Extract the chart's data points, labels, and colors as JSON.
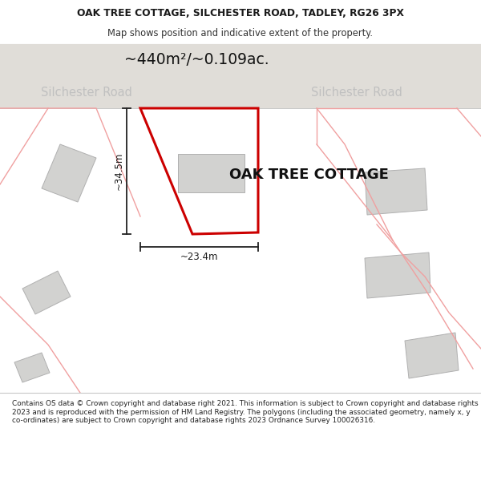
{
  "title_line1": "OAK TREE COTTAGE, SILCHESTER ROAD, TADLEY, RG26 3PX",
  "title_line2": "Map shows position and indicative extent of the property.",
  "area_label": "~440m²/~0.109ac.",
  "road_label": "Silchester Road",
  "property_label": "OAK TREE COTTAGE",
  "dim_height": "~34.5m",
  "dim_width": "~23.4m",
  "footer_text": "Contains OS data © Crown copyright and database right 2021. This information is subject to Crown copyright and database rights 2023 and is reproduced with the permission of HM Land Registry. The polygons (including the associated geometry, namely x, y co-ordinates) are subject to Crown copyright and database rights 2023 Ordnance Survey 100026316.",
  "bg_color": "#f8f8f6",
  "map_bg": "#eeede9",
  "header_bg": "#ffffff",
  "footer_bg": "#ffffff",
  "plot_color_edge": "#cc0000",
  "building_fill": "#d2d2d0",
  "building_edge": "#b0b0b0",
  "road_text_color": "#c0c0c0",
  "pink_edge": "#f0a0a0",
  "dim_line_color": "#222222",
  "road_band_color": "#e0ddd8",
  "separator_color": "#c8c8c8"
}
